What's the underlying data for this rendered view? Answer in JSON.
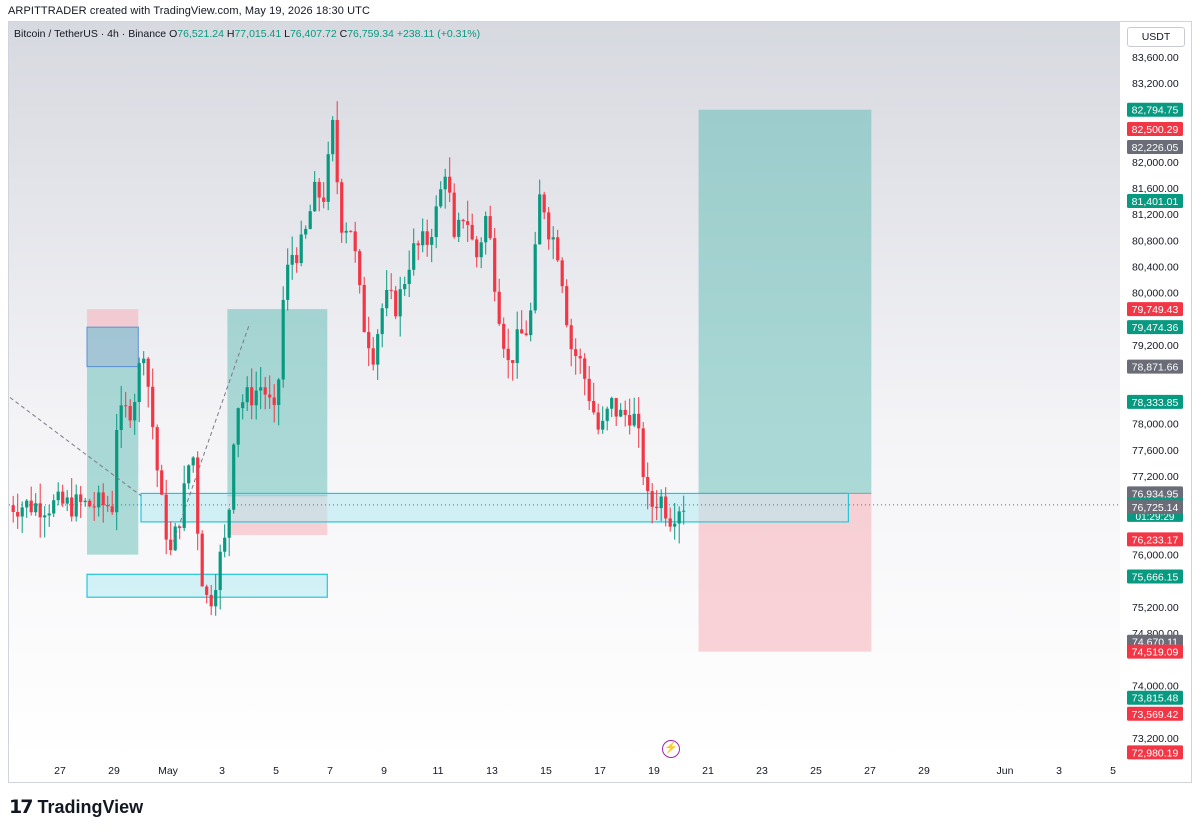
{
  "header": {
    "text": "ARPITTRADER created with TradingView.com, May 19, 2026 18:30 UTC"
  },
  "legend": {
    "symbol": "Bitcoin / TetherUS · 4h · Binance",
    "open_label": "O",
    "open": "76,521.24",
    "high_label": "H",
    "high": "77,015.41",
    "low_label": "L",
    "low": "76,407.72",
    "close_label": "C",
    "close": "76,759.34",
    "change": "+238.11 (+0.31%)"
  },
  "currency": "USDT",
  "branding": {
    "logo_mark": "17",
    "logo_text": "TradingView"
  },
  "icons": {
    "flash": "lightning-icon"
  },
  "colors": {
    "up": "#089981",
    "down": "#f23645",
    "zone": "#26c6da",
    "long_profit": "#b2dfdb",
    "long_loss": "#f8c9cf",
    "grey_badge": "#6a6d78"
  },
  "chart_data": {
    "type": "candlestick",
    "symbol": "BTCUSDT",
    "interval": "4h",
    "ylim": [
      72800,
      83900
    ],
    "y_ticks": [
      "83,600.00",
      "83,200.00",
      "82,000.00",
      "81,600.00",
      "81,200.00",
      "80,800.00",
      "80,400.00",
      "80,000.00",
      "79,200.00",
      "78,000.00",
      "77,600.00",
      "77,200.00",
      "76,000.00",
      "75,200.00",
      "74,800.00",
      "74,000.00",
      "73,200.00"
    ],
    "x_ticks": [
      "27",
      "29",
      "May",
      "3",
      "5",
      "7",
      "9",
      "11",
      "13",
      "15",
      "17",
      "19",
      "21",
      "23",
      "25",
      "27",
      "29",
      "Jun",
      "3",
      "5"
    ],
    "price_badges": [
      {
        "label": "82,794.75",
        "value": 82794.75,
        "color": "#089981"
      },
      {
        "label": "82,500.29",
        "value": 82500.29,
        "color": "#f23645"
      },
      {
        "label": "82,226.05",
        "value": 82226.05,
        "color": "#6a6d78"
      },
      {
        "label": "81,401.01",
        "value": 81401.01,
        "color": "#089981"
      },
      {
        "label": "79,749.43",
        "value": 79749.43,
        "color": "#f23645"
      },
      {
        "label": "79,474.36",
        "value": 79474.36,
        "color": "#089981"
      },
      {
        "label": "78,871.66",
        "value": 78871.66,
        "color": "#6a6d78"
      },
      {
        "label": "78,333.85",
        "value": 78333.85,
        "color": "#089981"
      },
      {
        "label": "76,934.95",
        "value": 76934.95,
        "color": "#6a6d78"
      },
      {
        "label": "76,759.34",
        "value": 76759.34,
        "color": "#089981",
        "sub": "01:29:29"
      },
      {
        "label": "76,725.14",
        "value": 76725.14,
        "color": "#6a6d78"
      },
      {
        "label": "76,233.17",
        "value": 76233.17,
        "color": "#f23645"
      },
      {
        "label": "75,666.15",
        "value": 75666.15,
        "color": "#089981"
      },
      {
        "label": "74,670.11",
        "value": 74670.11,
        "color": "#6a6d78"
      },
      {
        "label": "74,519.09",
        "value": 74519.09,
        "color": "#f23645"
      },
      {
        "label": "73,815.48",
        "value": 73815.48,
        "color": "#089981"
      },
      {
        "label": "73,569.42",
        "value": 73569.42,
        "color": "#f23645"
      },
      {
        "label": "72,980.19",
        "value": 72980.19,
        "color": "#f23645"
      }
    ],
    "current_price": 76759.34,
    "anchors": [
      {
        "d": -2.0,
        "p": 77950
      },
      {
        "d": -1.3,
        "p": 78300
      },
      {
        "d": -0.9,
        "p": 79200
      },
      {
        "d": -0.6,
        "p": 78100
      },
      {
        "d": -0.3,
        "p": 76900
      },
      {
        "d": 0.1,
        "p": 76000
      },
      {
        "d": 0.5,
        "p": 76700
      },
      {
        "d": 0.9,
        "p": 77700
      },
      {
        "d": 1.2,
        "p": 75800
      },
      {
        "d": 1.5,
        "p": 75200
      },
      {
        "d": 1.9,
        "p": 75900
      },
      {
        "d": 2.2,
        "p": 76300
      },
      {
        "d": 2.5,
        "p": 78300
      },
      {
        "d": 3.0,
        "p": 78400
      },
      {
        "d": 3.5,
        "p": 78600
      },
      {
        "d": 4.0,
        "p": 78000
      },
      {
        "d": 4.3,
        "p": 80100
      },
      {
        "d": 4.6,
        "p": 80600
      },
      {
        "d": 5.0,
        "p": 80700
      },
      {
        "d": 5.4,
        "p": 81500
      },
      {
        "d": 5.8,
        "p": 81500
      },
      {
        "d": 6.1,
        "p": 82500
      },
      {
        "d": 6.4,
        "p": 81100
      },
      {
        "d": 6.8,
        "p": 81000
      },
      {
        "d": 7.2,
        "p": 79600
      },
      {
        "d": 7.6,
        "p": 79100
      },
      {
        "d": 8.0,
        "p": 79900
      },
      {
        "d": 8.5,
        "p": 79800
      },
      {
        "d": 9.0,
        "p": 80600
      },
      {
        "d": 9.6,
        "p": 80800
      },
      {
        "d": 10.0,
        "p": 81300
      },
      {
        "d": 10.3,
        "p": 82000
      },
      {
        "d": 10.6,
        "p": 80700
      },
      {
        "d": 11.0,
        "p": 81300
      },
      {
        "d": 11.4,
        "p": 80500
      },
      {
        "d": 11.8,
        "p": 81200
      },
      {
        "d": 12.2,
        "p": 79900
      },
      {
        "d": 12.6,
        "p": 78900
      },
      {
        "d": 13.0,
        "p": 79300
      },
      {
        "d": 13.4,
        "p": 79500
      },
      {
        "d": 13.8,
        "p": 81600
      },
      {
        "d": 14.1,
        "p": 81000
      },
      {
        "d": 14.5,
        "p": 80600
      },
      {
        "d": 14.9,
        "p": 79200
      },
      {
        "d": 15.3,
        "p": 78900
      },
      {
        "d": 15.7,
        "p": 78300
      },
      {
        "d": 16.0,
        "p": 77800
      },
      {
        "d": 16.4,
        "p": 78300
      },
      {
        "d": 16.8,
        "p": 78100
      },
      {
        "d": 17.2,
        "p": 78200
      },
      {
        "d": 17.5,
        "p": 77600
      },
      {
        "d": 17.8,
        "p": 76700
      },
      {
        "d": 18.2,
        "p": 76900
      },
      {
        "d": 18.6,
        "p": 76600
      },
      {
        "d": 19.0,
        "p": 76800
      },
      {
        "d": 19.2,
        "p": 76759
      }
    ],
    "zones": [
      {
        "type": "long-position",
        "entry": 76934.95,
        "target": 82794.75,
        "stop": 74519.09,
        "x0": 19.65,
        "x1": 26.05
      },
      {
        "type": "long-position",
        "entry": 76900,
        "target": 79750,
        "stop": 76300,
        "x0": 2.2,
        "x1": 5.9
      },
      {
        "type": "short-position",
        "entry": 79474.36,
        "target": 76000,
        "stop": 79749.43,
        "x0": -3.0,
        "x1": -1.1
      },
      {
        "type": "demand-zone",
        "top": 76934.95,
        "bottom": 76500,
        "x0": -1.0,
        "x1": 25.2
      },
      {
        "type": "demand-zone",
        "top": 75700,
        "bottom": 75350,
        "x0": -3.0,
        "x1": 5.9
      },
      {
        "type": "supply-zone",
        "top": 79474.36,
        "bottom": 78871.66,
        "x0": -3.0,
        "x1": -1.1
      }
    ]
  }
}
